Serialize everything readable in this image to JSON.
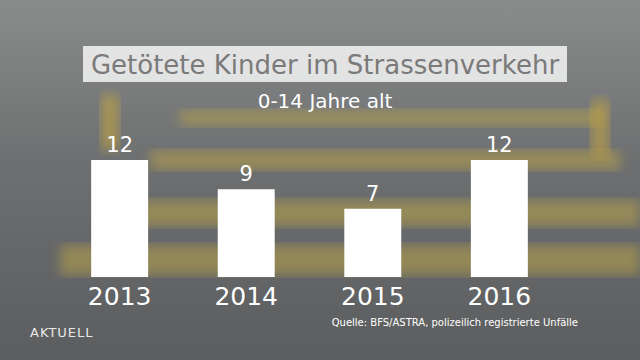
{
  "chart_data": {
    "type": "bar",
    "title": "Getötete Kinder im Strassenverkehr",
    "subtitle": "0-14 Jahre alt",
    "categories": [
      "2013",
      "2014",
      "2015",
      "2016"
    ],
    "values": [
      12,
      9,
      7,
      12
    ],
    "color": "#ffffff",
    "ylim": [
      0,
      12
    ],
    "data_labels": true,
    "tick_labels": "x",
    "grid": false,
    "annotations": [
      "AKTUELL",
      "Quelle: BFS/ASTRA, polizeilich registrierte Unfälle"
    ]
  }
}
